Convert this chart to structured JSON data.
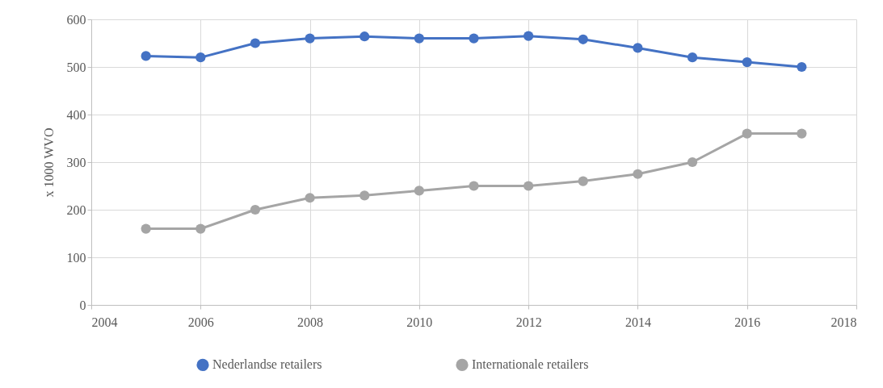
{
  "chart_data": {
    "type": "line",
    "ylabel": "x 1000 WVO",
    "x": [
      2005,
      2006,
      2007,
      2008,
      2009,
      2010,
      2011,
      2012,
      2013,
      2014,
      2015,
      2016,
      2017
    ],
    "series": [
      {
        "name": "Nederlandse retailers",
        "color": "#4472c4",
        "values": [
          523,
          520,
          550,
          560,
          564,
          560,
          560,
          565,
          558,
          540,
          520,
          510,
          500
        ]
      },
      {
        "name": "Internationale retailers",
        "color": "#a5a5a5",
        "values": [
          160,
          160,
          200,
          225,
          230,
          240,
          250,
          250,
          260,
          275,
          300,
          360,
          360
        ]
      }
    ],
    "xlim": [
      2004,
      2018
    ],
    "xticks": [
      2004,
      2006,
      2008,
      2010,
      2012,
      2014,
      2016,
      2018
    ],
    "ylim": [
      0,
      600
    ],
    "yticks": [
      0,
      100,
      200,
      300,
      400,
      500,
      600
    ],
    "grid": true,
    "legend": "bottom",
    "marker": "circle",
    "line_style": "solid"
  }
}
